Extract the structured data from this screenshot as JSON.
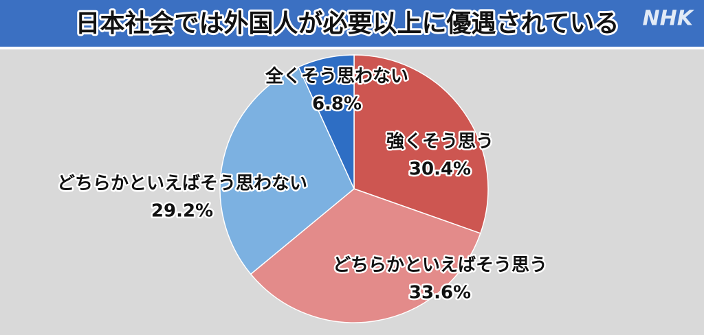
{
  "logo": "NHK",
  "chart_data": {
    "type": "pie",
    "title": "日本社会では外国人が必要以上に優遇されている",
    "categories": [
      "強くそう思う",
      "どちらかといえばそう思う",
      "どちらかといえばそう思わない",
      "全くそう思わない"
    ],
    "values": [
      30.4,
      33.6,
      29.2,
      6.8
    ],
    "value_labels": [
      "30.4%",
      "33.6%",
      "29.2%",
      "6.8%"
    ],
    "colors": [
      "#cd5651",
      "#e38b8a",
      "#7cb1e1",
      "#2e6ec4"
    ]
  }
}
